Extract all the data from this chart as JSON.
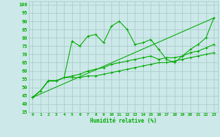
{
  "title": "",
  "xlabel": "Humidité relative (%)",
  "ylabel": "",
  "bg_color": "#cce8e8",
  "grid_color": "#aacccc",
  "line_color": "#00aa00",
  "xlim": [
    -0.5,
    23.5
  ],
  "ylim": [
    35,
    102
  ],
  "yticks": [
    35,
    40,
    45,
    50,
    55,
    60,
    65,
    70,
    75,
    80,
    85,
    90,
    95,
    100
  ],
  "xticks": [
    0,
    1,
    2,
    3,
    4,
    5,
    6,
    7,
    8,
    9,
    10,
    11,
    12,
    13,
    14,
    15,
    16,
    17,
    18,
    19,
    20,
    21,
    22,
    23
  ],
  "series": [
    {
      "x": [
        0,
        1,
        2,
        3,
        4,
        5,
        6,
        7,
        8,
        9,
        10,
        11,
        12,
        13,
        14,
        15,
        16,
        17,
        18,
        19,
        20,
        21,
        22,
        23
      ],
      "y": [
        44,
        48,
        54,
        54,
        56,
        78,
        75,
        81,
        82,
        77,
        87,
        90,
        85,
        76,
        77,
        79,
        73,
        67,
        65,
        69,
        73,
        76,
        80,
        92
      ]
    },
    {
      "x": [
        0,
        1,
        2,
        3,
        4,
        5,
        6,
        7,
        8,
        9,
        10,
        11,
        12,
        13,
        14,
        15,
        16,
        17,
        18,
        19,
        20,
        21,
        22,
        23
      ],
      "y": [
        44,
        48,
        54,
        54,
        56,
        57,
        58,
        60,
        61,
        62,
        64,
        65,
        66,
        67,
        68,
        69,
        67,
        68,
        68,
        69,
        71,
        72,
        74,
        76
      ]
    },
    {
      "x": [
        0,
        1,
        2,
        3,
        4,
        5,
        6,
        7,
        8,
        9,
        10,
        11,
        12,
        13,
        14,
        15,
        16,
        17,
        18,
        19,
        20,
        21,
        22,
        23
      ],
      "y": [
        44,
        48,
        54,
        54,
        56,
        56,
        56,
        57,
        57,
        58,
        59,
        60,
        61,
        62,
        63,
        64,
        65,
        65,
        66,
        67,
        68,
        69,
        70,
        71
      ]
    },
    {
      "x": [
        0,
        23
      ],
      "y": [
        44,
        92
      ]
    }
  ]
}
